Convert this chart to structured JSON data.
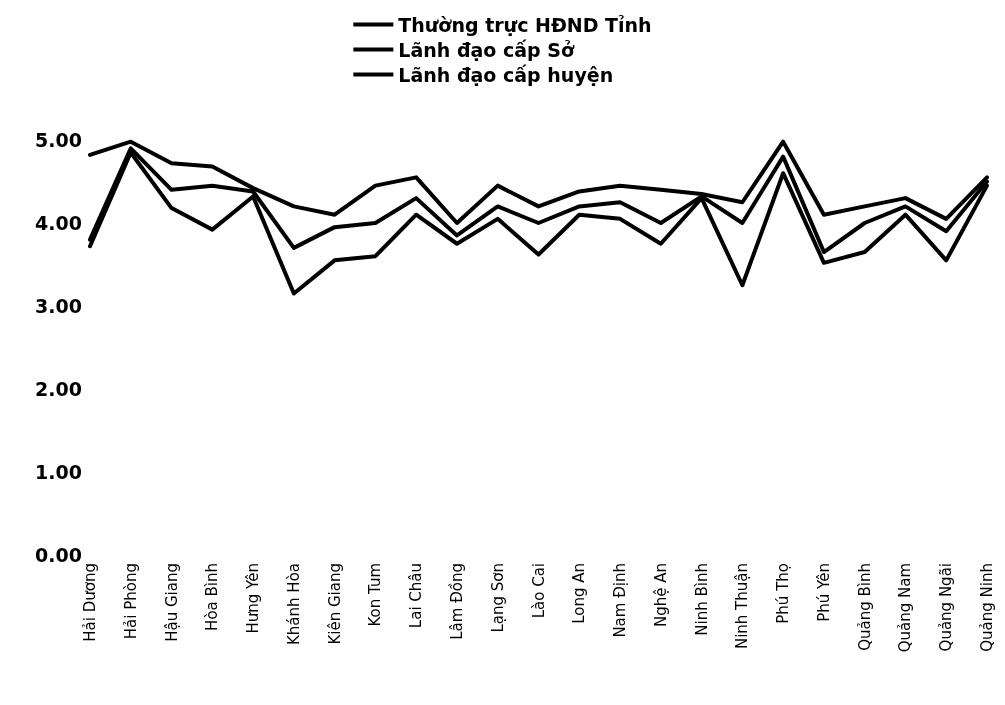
{
  "chart_data": {
    "type": "line",
    "categories": [
      "Hải Dương",
      "Hải Phòng",
      "Hậu Giang",
      "Hòa Bình",
      "Hưng Yên",
      "Khánh Hòa",
      "Kiên Giang",
      "Kon Tum",
      "Lai Châu",
      "Lâm Đồng",
      "Lạng Sơn",
      "Lào Cai",
      "Long An",
      "Nam Định",
      "Nghệ An",
      "Ninh Bình",
      "Ninh Thuận",
      "Phú Thọ",
      "Phú Yên",
      "Quảng Bình",
      "Quảng Nam",
      "Quảng Ngãi",
      "Quảng Ninh"
    ],
    "series": [
      {
        "name": "Thường trực HĐND Tỉnh",
        "color": "#000000",
        "values": [
          4.82,
          4.98,
          4.72,
          4.68,
          4.42,
          4.2,
          4.1,
          4.45,
          4.55,
          4.0,
          4.45,
          4.2,
          4.38,
          4.45,
          4.4,
          4.35,
          4.25,
          4.98,
          4.1,
          4.2,
          4.3,
          4.05,
          4.55
        ]
      },
      {
        "name": "Lãnh đạo cấp Sở",
        "color": "#000000",
        "values": [
          3.8,
          4.9,
          4.4,
          4.45,
          4.38,
          3.7,
          3.95,
          4.0,
          4.3,
          3.85,
          4.2,
          4.0,
          4.2,
          4.25,
          4.0,
          4.32,
          4.0,
          4.8,
          3.65,
          4.0,
          4.2,
          3.9,
          4.5
        ]
      },
      {
        "name": "Lãnh đạo cấp huyện",
        "color": "#000000",
        "values": [
          3.72,
          4.85,
          4.18,
          3.92,
          4.32,
          3.15,
          3.55,
          3.6,
          4.1,
          3.75,
          4.05,
          3.62,
          4.1,
          4.05,
          3.75,
          4.3,
          3.25,
          4.6,
          3.52,
          3.65,
          4.1,
          3.55,
          4.45
        ]
      }
    ],
    "ylim": [
      0,
      5
    ],
    "yticks": [
      {
        "value": 0,
        "label": "0.00"
      },
      {
        "value": 1,
        "label": "1.00"
      },
      {
        "value": 2,
        "label": "2.00"
      },
      {
        "value": 3,
        "label": "3.00"
      },
      {
        "value": 4,
        "label": "4.00"
      },
      {
        "value": 5,
        "label": "5.00"
      }
    ],
    "legend": "top",
    "marker": "none",
    "line_style": "solid",
    "grid": false
  }
}
